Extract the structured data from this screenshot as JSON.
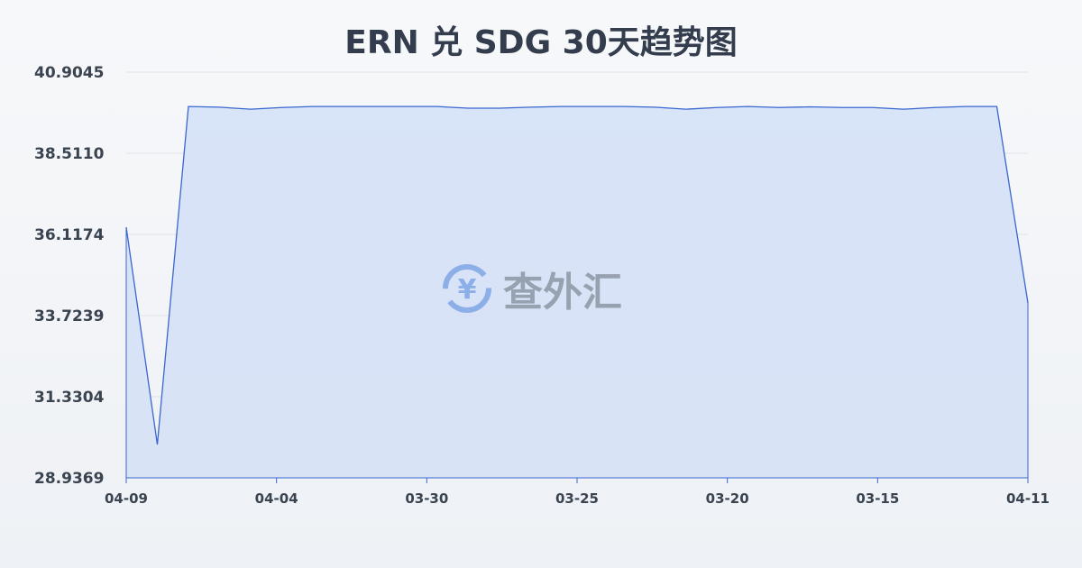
{
  "title": "ERN 兑 SDG 30天趋势图",
  "watermark": "查外汇",
  "colors": {
    "line": "#3a66d1",
    "fill": "#d5e1f6",
    "grid": "#dde3ea"
  },
  "chart_data": {
    "type": "area",
    "title": "ERN 兑 SDG 30天趋势图",
    "ylim": [
      28.9369,
      40.9045
    ],
    "y_ticks": [
      "40.9045",
      "38.5110",
      "36.1174",
      "33.7239",
      "31.3304",
      "28.9369"
    ],
    "x_ticks": [
      "04-09",
      "04-04",
      "03-30",
      "03-25",
      "03-20",
      "03-15",
      "04-11"
    ],
    "grid": true,
    "values": [
      36.33,
      29.92,
      39.89,
      39.87,
      39.81,
      39.86,
      39.89,
      39.89,
      39.89,
      39.89,
      39.89,
      39.84,
      39.84,
      39.87,
      39.89,
      39.89,
      39.89,
      39.87,
      39.81,
      39.86,
      39.89,
      39.86,
      39.88,
      39.86,
      39.86,
      39.81,
      39.86,
      39.89,
      39.89,
      34.1
    ]
  }
}
